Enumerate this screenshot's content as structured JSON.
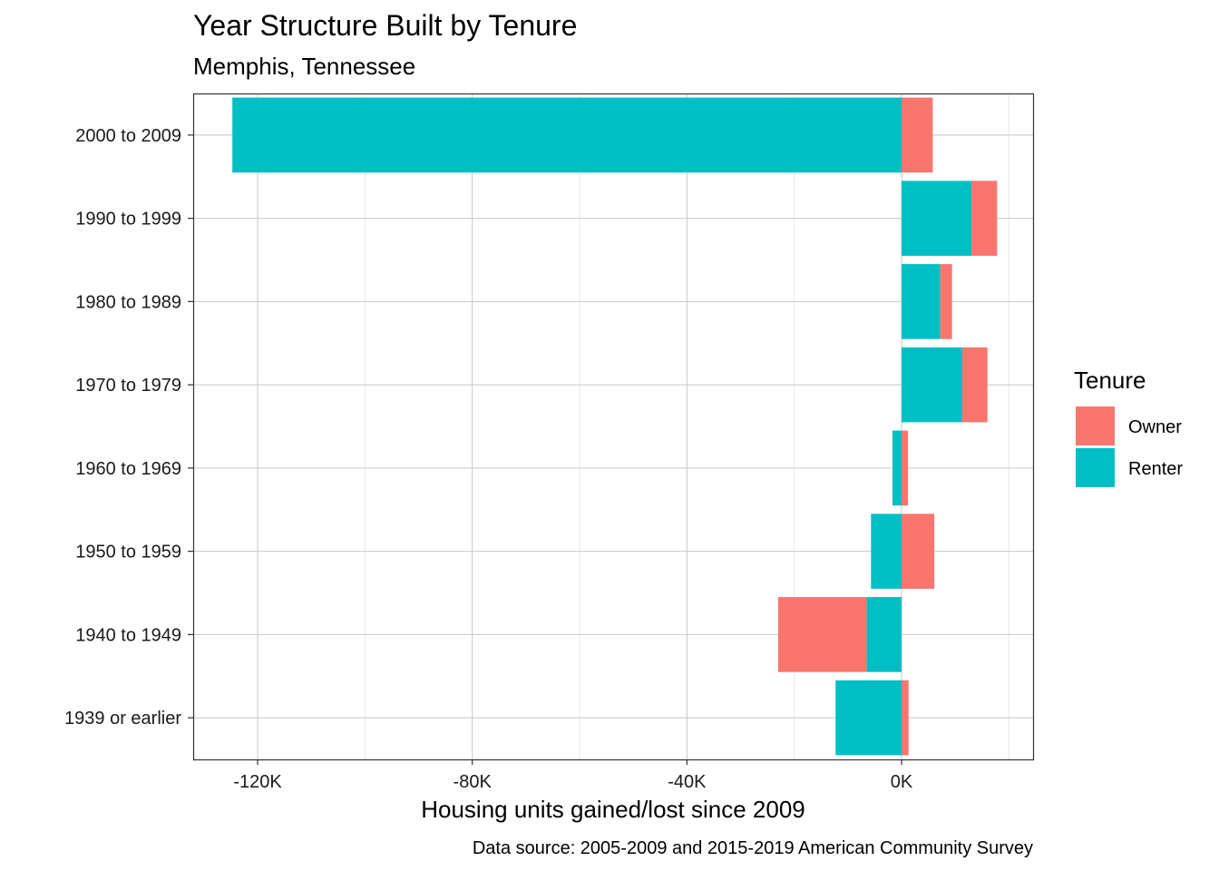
{
  "chart_data": {
    "type": "bar",
    "orientation": "horizontal",
    "stacked": true,
    "title": "Year Structure Built by Tenure",
    "subtitle": "Memphis, Tennessee",
    "xlabel": "Housing units gained/lost since 2009",
    "ylabel": "",
    "caption": "Data source: 2005-2009 and 2015-2019 American Community Survey",
    "xlim": [
      -132000,
      24500
    ],
    "x_ticks": [
      -120000,
      -80000,
      -40000,
      0
    ],
    "x_tick_labels": [
      "-120K",
      "-80K",
      "-40K",
      "0K"
    ],
    "grid": true,
    "legend_position": "right",
    "legend_title": "Tenure",
    "categories": [
      "2000 to 2009",
      "1990 to 1999",
      "1980 to 1989",
      "1970 to 1979",
      "1960 to 1969",
      "1950 to 1959",
      "1940 to 1949",
      "1939 or earlier"
    ],
    "series": [
      {
        "name": "Owner",
        "color": "#F8766D",
        "values": [
          5800,
          4800,
          2200,
          4700,
          1200,
          6100,
          -16500,
          1300
        ]
      },
      {
        "name": "Renter",
        "color": "#00BFC4",
        "values": [
          -124700,
          13000,
          7200,
          11300,
          -1700,
          -5700,
          -6500,
          -12300
        ]
      }
    ]
  }
}
